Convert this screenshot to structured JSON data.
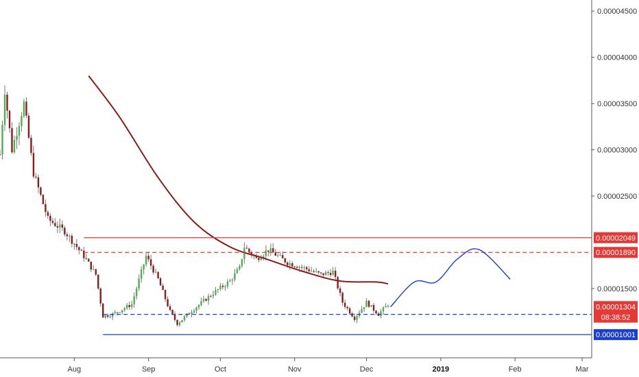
{
  "chart_data": {
    "type": "candlestick",
    "y_axis": {
      "position": "right",
      "ticks": [
        "0.00004500",
        "0.00004000",
        "0.00003500",
        "0.00003000",
        "0.00002500",
        "0.00001500"
      ],
      "ylim": [
        7.5e-06,
        4.62e-05
      ]
    },
    "x_axis": {
      "labels": [
        {
          "text": "Aug",
          "bold": false
        },
        {
          "text": "Sep",
          "bold": false
        },
        {
          "text": "Oct",
          "bold": false
        },
        {
          "text": "Nov",
          "bold": false
        },
        {
          "text": "Dec",
          "bold": false
        },
        {
          "text": "2019",
          "bold": true
        },
        {
          "text": "Feb",
          "bold": false
        },
        {
          "text": "Mar",
          "bold": false
        }
      ],
      "start": "2018-07-01",
      "end": "2019-03-05"
    },
    "grid": false,
    "candles": {
      "start": "2018-07-01",
      "end": "2018-12-10",
      "up_color": "#4CAF50",
      "down_color": "#8B1A1A",
      "wick_color": "#777777",
      "anchors": [
        [
          "2018-07-01",
          2.95e-05
        ],
        [
          "2018-07-03",
          3.65e-05
        ],
        [
          "2018-07-06",
          3e-05
        ],
        [
          "2018-07-11",
          3.5e-05
        ],
        [
          "2018-07-15",
          2.75e-05
        ],
        [
          "2018-07-21",
          2.25e-05
        ],
        [
          "2018-07-28",
          2.12e-05
        ],
        [
          "2018-08-05",
          1.85e-05
        ],
        [
          "2018-08-10",
          1.65e-05
        ],
        [
          "2018-08-13",
          1.2e-05
        ],
        [
          "2018-08-17",
          1.22e-05
        ],
        [
          "2018-08-25",
          1.33e-05
        ],
        [
          "2018-08-31",
          1.85e-05
        ],
        [
          "2018-09-05",
          1.6e-05
        ],
        [
          "2018-09-10",
          1.25e-05
        ],
        [
          "2018-09-13",
          1.12e-05
        ],
        [
          "2018-09-20",
          1.28e-05
        ],
        [
          "2018-09-28",
          1.45e-05
        ],
        [
          "2018-10-05",
          1.58e-05
        ],
        [
          "2018-10-09",
          1.72e-05
        ],
        [
          "2018-10-11",
          1.95e-05
        ],
        [
          "2018-10-16",
          1.82e-05
        ],
        [
          "2018-10-21",
          1.92e-05
        ],
        [
          "2018-10-29",
          1.78e-05
        ],
        [
          "2018-11-05",
          1.72e-05
        ],
        [
          "2018-11-12",
          1.65e-05
        ],
        [
          "2018-11-17",
          1.68e-05
        ],
        [
          "2018-11-21",
          1.35e-05
        ],
        [
          "2018-11-26",
          1.18e-05
        ],
        [
          "2018-12-01",
          1.35e-05
        ],
        [
          "2018-12-06",
          1.22e-05
        ],
        [
          "2018-12-10",
          1.33e-05
        ]
      ]
    },
    "moving_average": {
      "color": "#8B1A1A",
      "points": [
        [
          "2018-08-07",
          3.8e-05
        ],
        [
          "2018-08-20",
          3.35e-05
        ],
        [
          "2018-09-05",
          2.7e-05
        ],
        [
          "2018-09-20",
          2.22e-05
        ],
        [
          "2018-10-05",
          1.95e-05
        ],
        [
          "2018-10-20",
          1.82e-05
        ],
        [
          "2018-11-05",
          1.68e-05
        ],
        [
          "2018-11-20",
          1.58e-05
        ],
        [
          "2018-12-05",
          1.57e-05
        ],
        [
          "2018-12-10",
          1.55e-05
        ]
      ]
    },
    "projection": {
      "color": "#1A3FD0",
      "points": [
        [
          "2018-12-11",
          1.3e-05
        ],
        [
          "2018-12-21",
          1.57e-05
        ],
        [
          "2018-12-30",
          1.57e-05
        ],
        [
          "2019-01-08",
          1.82e-05
        ],
        [
          "2019-01-17",
          1.92e-05
        ],
        [
          "2019-01-30",
          1.6e-05
        ]
      ]
    },
    "horizontal_lines": [
      {
        "value": 2.049e-05,
        "color": "#E53935",
        "style": "solid",
        "from": "2018-08-05"
      },
      {
        "value": 1.89e-05,
        "color": "#E53935",
        "style": "dashed",
        "from": "2018-08-05"
      },
      {
        "value": 1.22e-05,
        "color": "#1A3FD0",
        "style": "dashed",
        "from": "2018-08-13"
      },
      {
        "value": 1.001e-05,
        "color": "#1A3FD0",
        "style": "solid",
        "from": "2018-08-13"
      }
    ],
    "price_labels": [
      {
        "text": "0.00002049",
        "value": 2.049e-05,
        "color": "#E53935"
      },
      {
        "text": "0.00001890",
        "value": 1.89e-05,
        "color": "#E53935"
      },
      {
        "text": "0.00001304",
        "value": 1.304e-05,
        "color": "#E53935"
      },
      {
        "text": "08:38:52",
        "value": 1.19e-05,
        "color": "#E53935"
      },
      {
        "text": "0.00001001",
        "value": 1.001e-05,
        "color": "#1A3FD0"
      }
    ]
  }
}
